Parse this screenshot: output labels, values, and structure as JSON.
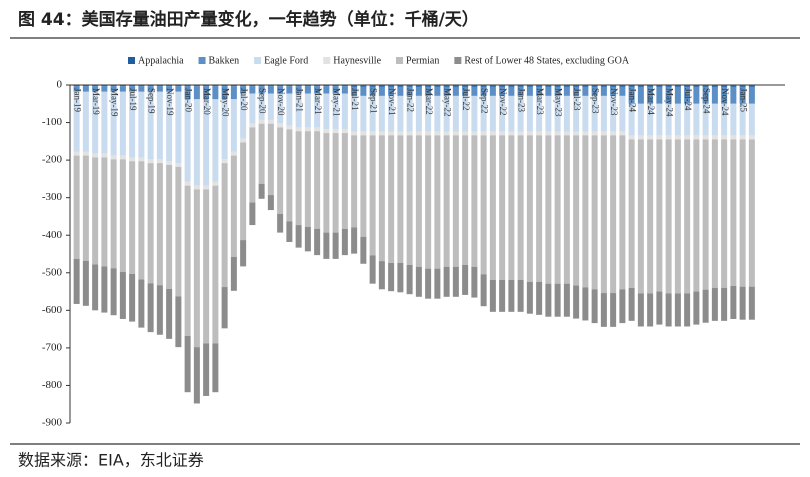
{
  "chart_data": {
    "type": "stacked_bar",
    "title": "图 44：美国存量油田产量变化，一年趋势（单位：千桶/天）",
    "source": "数据来源：EIA，东北证券",
    "categories": [
      "Jan-19",
      null,
      "Mar-19",
      null,
      "May-19",
      null,
      "Jul-19",
      null,
      "Sep-19",
      null,
      "Nov-19",
      null,
      "Jan-20",
      null,
      "Mar-20",
      null,
      "May-20",
      null,
      "Jul-20",
      null,
      "Sep-20",
      null,
      "Nov-20",
      null,
      "Jan-21",
      null,
      "Mar-21",
      null,
      "May-21",
      null,
      "Jul-21",
      null,
      "Sep-21",
      null,
      "Nov-21",
      null,
      "Jan-22",
      null,
      "Mar-22",
      null,
      "May-22",
      null,
      "Jul-22",
      null,
      "Sep-22",
      null,
      "Nov-22",
      null,
      "Jan-23",
      null,
      "Mar-23",
      null,
      "May-23",
      null,
      "Jul-23",
      null,
      "Sep-23",
      null,
      "Nov-23",
      null,
      "Jan-24",
      null,
      "Mar-24",
      null,
      "May-24",
      null,
      "Jul-24",
      null,
      "Sep-24",
      null,
      "Nov-24",
      null,
      "Jan-25",
      null
    ],
    "series": [
      {
        "name": "Appalachia",
        "color": "#1f5fa0",
        "values": [
          -3,
          -3,
          -3,
          -3,
          -3,
          -3,
          -3,
          -3,
          -3,
          -3,
          -3,
          -3,
          -3,
          -3,
          -3,
          -3,
          -3,
          -3,
          -3,
          -3,
          -3,
          -3,
          -3,
          -3,
          -3,
          -3,
          -3,
          -3,
          -3,
          -3,
          -4,
          -4,
          -4,
          -4,
          -4,
          -4,
          -4,
          -4,
          -4,
          -4,
          -4,
          -4,
          -4,
          -4,
          -4,
          -4,
          -4,
          -4,
          -4,
          -4,
          -4,
          -4,
          -4,
          -4,
          -4,
          -4,
          -4,
          -4,
          -4,
          -4,
          -5,
          -5,
          -5,
          -5,
          -5,
          -5,
          -5,
          -5,
          -5,
          -5,
          -5,
          -5,
          -5,
          -5
        ]
      },
      {
        "name": "Bakken",
        "color": "#5b8fc6",
        "values": [
          -15,
          -15,
          -15,
          -15,
          -15,
          -15,
          -15,
          -15,
          -15,
          -15,
          -15,
          -15,
          -35,
          -35,
          -35,
          -35,
          -35,
          -35,
          -20,
          -20,
          -20,
          -20,
          -20,
          -20,
          -20,
          -20,
          -20,
          -20,
          -20,
          -20,
          -25,
          -25,
          -25,
          -25,
          -25,
          -25,
          -25,
          -25,
          -25,
          -25,
          -25,
          -25,
          -25,
          -25,
          -25,
          -25,
          -25,
          -25,
          -25,
          -25,
          -25,
          -25,
          -25,
          -25,
          -25,
          -25,
          -25,
          -25,
          -25,
          -25,
          -45,
          -45,
          -45,
          -45,
          -45,
          -45,
          -45,
          -45,
          -45,
          -45,
          -45,
          -45,
          -45,
          -45
        ]
      },
      {
        "name": "Eagle Ford",
        "color": "#c9dcef",
        "values": [
          -160,
          -160,
          -165,
          -165,
          -170,
          -170,
          -175,
          -175,
          -180,
          -180,
          -185,
          -190,
          -220,
          -230,
          -230,
          -220,
          -160,
          -140,
          -120,
          -80,
          -70,
          -70,
          -80,
          -85,
          -90,
          -90,
          -90,
          -95,
          -95,
          -95,
          -95,
          -95,
          -95,
          -95,
          -95,
          -95,
          -95,
          -95,
          -95,
          -95,
          -95,
          -95,
          -95,
          -95,
          -95,
          -95,
          -95,
          -95,
          -95,
          -95,
          -95,
          -95,
          -95,
          -95,
          -95,
          -95,
          -95,
          -95,
          -95,
          -95,
          -85,
          -85,
          -85,
          -85,
          -85,
          -85,
          -85,
          -85,
          -85,
          -85,
          -85,
          -85,
          -85,
          -85
        ]
      },
      {
        "name": "Haynesville",
        "color": "#e2e2e2",
        "values": [
          -10,
          -10,
          -10,
          -10,
          -10,
          -10,
          -10,
          -10,
          -10,
          -10,
          -10,
          -10,
          -10,
          -10,
          -10,
          -10,
          -10,
          -10,
          -10,
          -10,
          -10,
          -10,
          -10,
          -10,
          -10,
          -10,
          -10,
          -10,
          -10,
          -10,
          -10,
          -10,
          -10,
          -10,
          -10,
          -10,
          -10,
          -10,
          -10,
          -10,
          -10,
          -10,
          -10,
          -10,
          -10,
          -10,
          -10,
          -10,
          -10,
          -10,
          -10,
          -10,
          -10,
          -10,
          -10,
          -10,
          -10,
          -10,
          -10,
          -10,
          -10,
          -10,
          -10,
          -10,
          -10,
          -10,
          -10,
          -10,
          -10,
          -10,
          -10,
          -10,
          -10,
          -10
        ]
      },
      {
        "name": "Permian",
        "color": "#bdbdbd",
        "values": [
          -275,
          -280,
          -285,
          -290,
          -290,
          -300,
          -300,
          -315,
          -320,
          -325,
          -330,
          -345,
          -400,
          -420,
          -410,
          -420,
          -330,
          -270,
          -260,
          -200,
          -160,
          -190,
          -230,
          -245,
          -250,
          -255,
          -260,
          -265,
          -265,
          -255,
          -245,
          -270,
          -320,
          -335,
          -340,
          -340,
          -345,
          -350,
          -355,
          -355,
          -350,
          -350,
          -345,
          -350,
          -370,
          -385,
          -385,
          -385,
          -385,
          -390,
          -390,
          -395,
          -395,
          -395,
          -400,
          -405,
          -410,
          -420,
          -420,
          -410,
          -395,
          -410,
          -410,
          -405,
          -410,
          -410,
          -410,
          -405,
          -400,
          -395,
          -395,
          -390,
          -392,
          -392
        ]
      },
      {
        "name": "Rest of Lower 48 States, excluding GOA",
        "color": "#8c8c8c",
        "values": [
          -120,
          -120,
          -122,
          -123,
          -125,
          -125,
          -127,
          -128,
          -130,
          -132,
          -133,
          -135,
          -150,
          -150,
          -140,
          -130,
          -110,
          -90,
          -70,
          -60,
          -40,
          -40,
          -50,
          -55,
          -60,
          -65,
          -70,
          -70,
          -70,
          -70,
          -70,
          -72,
          -75,
          -75,
          -75,
          -78,
          -78,
          -80,
          -80,
          -80,
          -80,
          -80,
          -80,
          -82,
          -85,
          -85,
          -85,
          -85,
          -85,
          -85,
          -88,
          -88,
          -88,
          -88,
          -88,
          -88,
          -90,
          -90,
          -90,
          -90,
          -88,
          -88,
          -88,
          -88,
          -88,
          -88,
          -88,
          -88,
          -88,
          -88,
          -88,
          -88,
          -88,
          -88
        ]
      }
    ],
    "ylim": [
      -900,
      0
    ],
    "yticks": [
      0,
      -100,
      -200,
      -300,
      -400,
      -500,
      -600,
      -700,
      -800,
      -900
    ]
  }
}
